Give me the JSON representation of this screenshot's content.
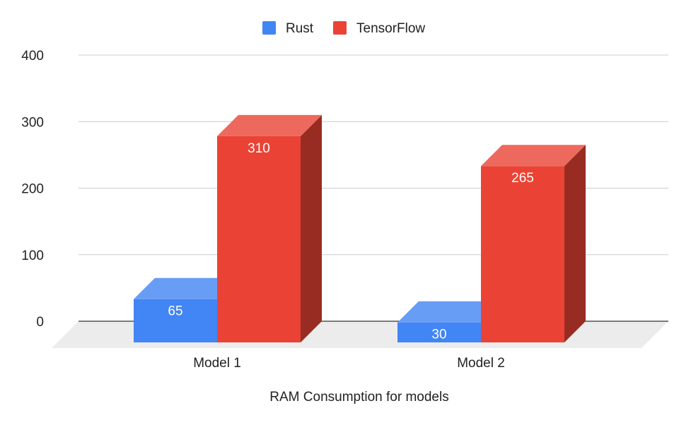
{
  "chart_data": {
    "type": "bar",
    "style": "3d-column",
    "title": "",
    "xlabel": "RAM Consumption for models",
    "ylabel": "",
    "categories": [
      "Model 1",
      "Model 2"
    ],
    "series": [
      {
        "name": "Rust",
        "values": [
          65,
          30
        ],
        "color": "#4285f4"
      },
      {
        "name": "TensorFlow",
        "values": [
          310,
          265
        ],
        "color": "#ea4335"
      }
    ],
    "ylim": [
      0,
      400
    ],
    "yticks": [
      "0",
      "100",
      "200",
      "300",
      "400"
    ],
    "data_labels": true,
    "grid": true,
    "legend_position": "top"
  }
}
